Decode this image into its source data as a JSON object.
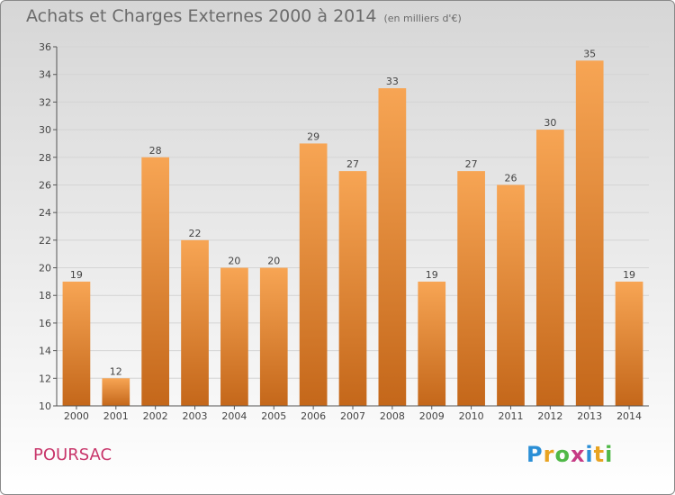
{
  "title": "Achats et Charges Externes 2000 à 2014",
  "unit": "(en milliers d'€)",
  "commune": "POURSAC",
  "logo": {
    "letters": [
      "P",
      "r",
      "o",
      "x",
      "i",
      "t",
      "i"
    ],
    "colors": [
      "#2b8fd6",
      "#e8a321",
      "#4fb847",
      "#c63a85",
      "#2b8fd6",
      "#e8a321",
      "#4fb847"
    ]
  },
  "colors": {
    "bar_top": "#f7a554",
    "bar_bottom": "#c4671a",
    "axis": "#555555",
    "grid": "#d4d4d4",
    "text": "#444444"
  },
  "chart_data": {
    "type": "bar",
    "categories": [
      "2000",
      "2001",
      "2002",
      "2003",
      "2004",
      "2005",
      "2006",
      "2007",
      "2008",
      "2009",
      "2010",
      "2011",
      "2012",
      "2013",
      "2014"
    ],
    "values": [
      19,
      12,
      28,
      22,
      20,
      20,
      29,
      27,
      33,
      19,
      27,
      26,
      30,
      35,
      19
    ],
    "ylim": [
      10,
      36
    ],
    "yticks": [
      10,
      12,
      14,
      16,
      18,
      20,
      22,
      24,
      26,
      28,
      30,
      32,
      34,
      36
    ],
    "grid": true,
    "data_labels": true
  }
}
